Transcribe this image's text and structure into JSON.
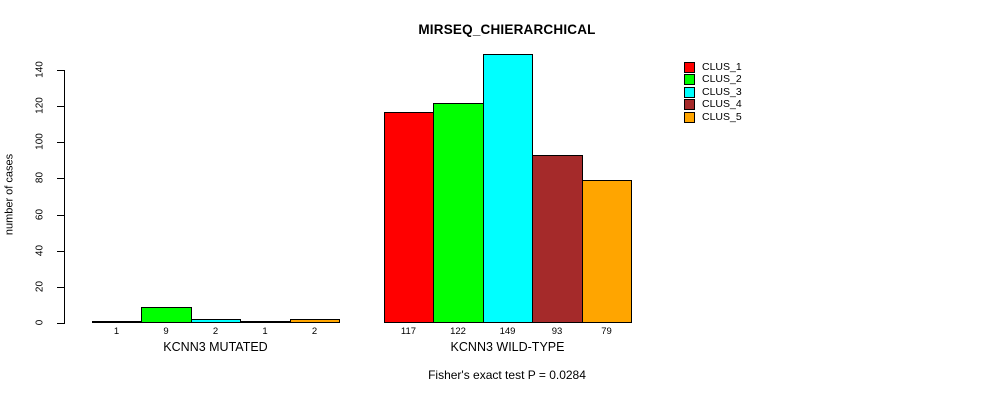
{
  "chart_data": {
    "type": "bar",
    "title": "MIRSEQ_CHIERARCHICAL",
    "ylabel": "number of cases",
    "xlabel": "",
    "ylim": [
      0,
      140
    ],
    "yticks": [
      0,
      20,
      40,
      60,
      80,
      100,
      120,
      140
    ],
    "grid": false,
    "legend_position": "top-right",
    "series_names": [
      "CLUS_1",
      "CLUS_2",
      "CLUS_3",
      "CLUS_4",
      "CLUS_5"
    ],
    "colors": [
      "#FF0000",
      "#00FF00",
      "#00FFFF",
      "#A52A2A",
      "#FFA500"
    ],
    "groups": [
      {
        "label": "KCNN3 MUTATED",
        "values": [
          1,
          9,
          2,
          1,
          2
        ]
      },
      {
        "label": "KCNN3 WILD-TYPE",
        "values": [
          117,
          122,
          149,
          93,
          79
        ]
      }
    ],
    "bar_labels": [
      [
        "1",
        "9",
        "2",
        "1",
        "2"
      ],
      [
        "117",
        "122",
        "149",
        "93",
        "79"
      ]
    ],
    "annotation": "Fisher's exact test P = 0.0284"
  }
}
